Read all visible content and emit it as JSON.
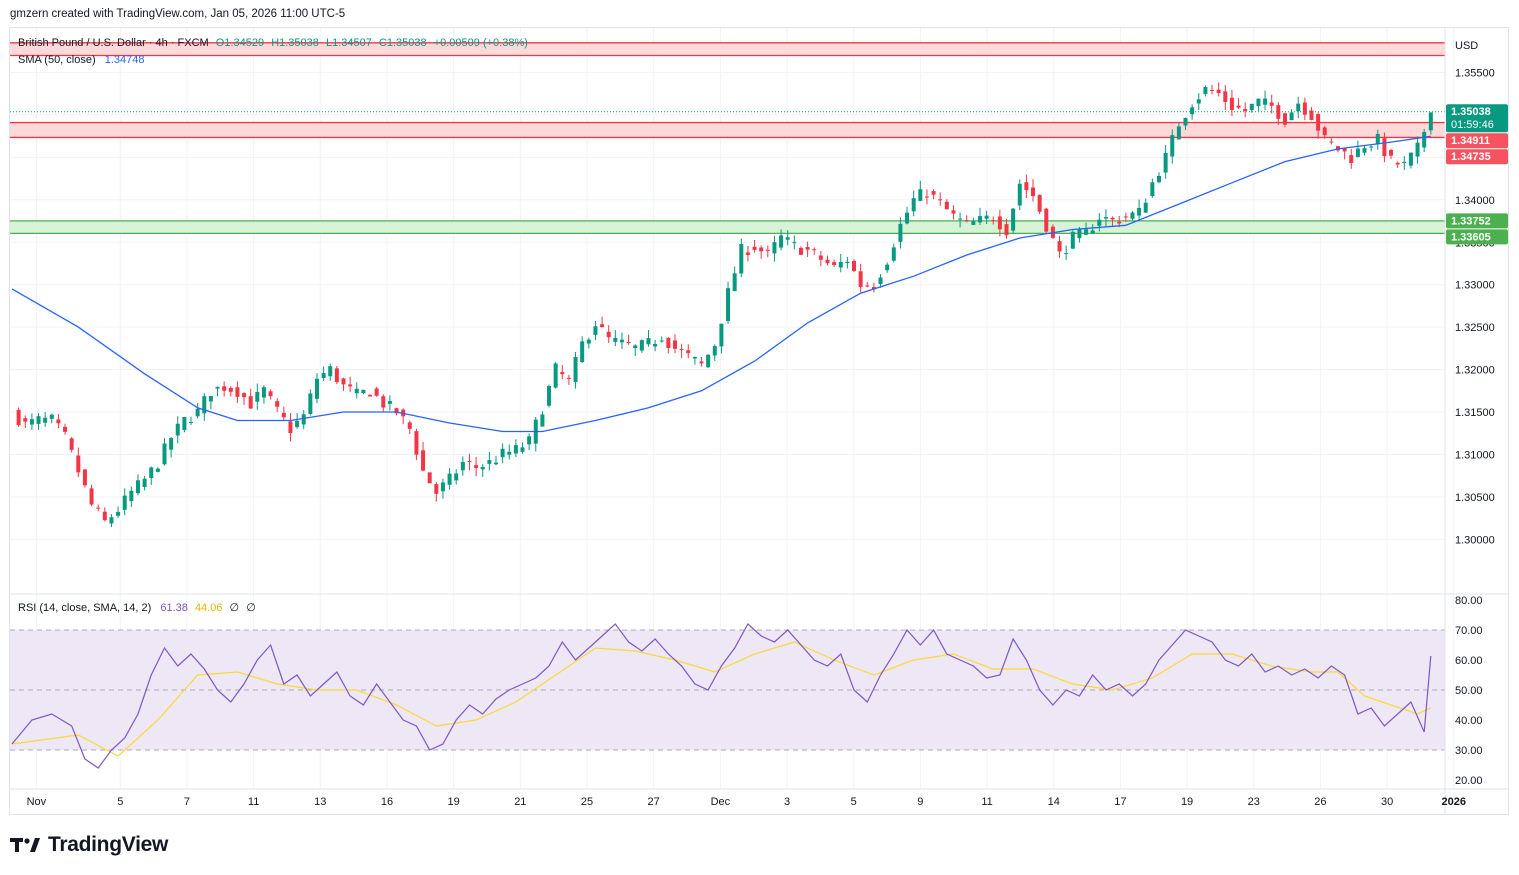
{
  "header": {
    "text": "gmzern created with TradingView.com, Jan 05, 2026 11:00 UTC-5"
  },
  "legend": {
    "symbol": "British Pound / U.S. Dollar · 4h · FXCM",
    "o": "O1.34529",
    "h": "H1.35038",
    "l": "L1.34507",
    "c": "C1.35038",
    "change": "+0.00509 (+0.38%)",
    "sma_label": "SMA (50, close)",
    "sma_value": "1.34748"
  },
  "rsi_legend": {
    "label": "RSI (14, close, SMA, 14, 2)",
    "rsi": "61.38",
    "sma": "44.06",
    "extra1": "∅",
    "extra2": "∅"
  },
  "currency": "USD",
  "price_axis": {
    "min": 1.2945,
    "max": 1.3593,
    "ticks": [
      "1.35500",
      "1.35000",
      "1.34500",
      "1.34000",
      "1.33500",
      "1.33000",
      "1.32500",
      "1.32000",
      "1.31500",
      "1.31000",
      "1.30500",
      "1.30000"
    ]
  },
  "rsi_axis": {
    "min": 17,
    "max": 82,
    "ticks": [
      "80.00",
      "70.00",
      "60.00",
      "50.00",
      "40.00",
      "30.00",
      "20.00"
    ]
  },
  "time_axis": [
    {
      "label": "Nov",
      "x": 0.6
    },
    {
      "label": "5",
      "x": 22
    },
    {
      "label": "7",
      "x": 39
    },
    {
      "label": "11",
      "x": 56
    },
    {
      "label": "13",
      "x": 73
    },
    {
      "label": "16",
      "x": 90
    },
    {
      "label": "19",
      "x": 107
    },
    {
      "label": "21",
      "x": 124
    },
    {
      "label": "25",
      "x": 141
    },
    {
      "label": "27",
      "x": 158
    },
    {
      "label": "Dec",
      "x": 175
    },
    {
      "label": "3",
      "x": 192
    },
    {
      "label": "5",
      "x": 209
    },
    {
      "label": "9",
      "x": 226
    },
    {
      "label": "11",
      "x": 243
    },
    {
      "label": "14",
      "x": 260
    },
    {
      "label": "17",
      "x": 277
    },
    {
      "label": "19",
      "x": 294
    },
    {
      "label": "23",
      "x": 311
    },
    {
      "label": "26",
      "x": 328
    },
    {
      "label": "30",
      "x": 345
    },
    {
      "label": "2026",
      "x": 362
    }
  ],
  "badges": [
    {
      "price": 1.35038,
      "text": "1.35038",
      "sub": "01:59:46",
      "color": "#089981"
    },
    {
      "price": 1.34911,
      "text": "1.34911",
      "color": "#f7525f"
    },
    {
      "price": 1.34735,
      "text": "1.34735",
      "color": "#f7525f"
    },
    {
      "price": 1.33752,
      "text": "1.33752",
      "color": "#4caf50"
    },
    {
      "price": 1.33605,
      "text": "1.33605",
      "color": "#4caf50"
    }
  ],
  "colors": {
    "up": "#089981",
    "down": "#f23645",
    "sma": "#2962ff",
    "rsi": "#7e57c2",
    "rsi_sma": "#fdd835",
    "resist_fill": "#fcdada",
    "resist_line": "#f23645",
    "support_fill": "#d7f3d7",
    "support_line": "#4caf50",
    "rsi_band": "#ede7f6"
  },
  "chart_data": {
    "type": "candlestick",
    "title": "British Pound / U.S. Dollar · 4h · FXCM",
    "x_axis_labels": [
      "Nov",
      "5",
      "7",
      "11",
      "13",
      "16",
      "19",
      "21",
      "25",
      "27",
      "Dec",
      "3",
      "5",
      "9",
      "11",
      "14",
      "17",
      "19",
      "23",
      "26",
      "30",
      "2026"
    ],
    "zones": [
      {
        "type": "resistance",
        "from": 1.3585,
        "to": 1.357
      },
      {
        "type": "resistance",
        "from": 1.3491,
        "to": 1.34735
      },
      {
        "type": "support",
        "from": 1.33752,
        "to": 1.33605
      }
    ],
    "close_path": [
      [
        0,
        1.315
      ],
      [
        2,
        1.3135
      ],
      [
        4,
        1.314
      ],
      [
        6,
        1.314
      ],
      [
        8,
        1.312
      ],
      [
        10,
        1.308
      ],
      [
        12,
        1.304
      ],
      [
        14,
        1.302
      ],
      [
        16,
        1.3035
      ],
      [
        18,
        1.3055
      ],
      [
        20,
        1.307
      ],
      [
        22,
        1.309
      ],
      [
        24,
        1.312
      ],
      [
        26,
        1.314
      ],
      [
        28,
        1.315
      ],
      [
        30,
        1.3175
      ],
      [
        32,
        1.318
      ],
      [
        34,
        1.3175
      ],
      [
        36,
        1.316
      ],
      [
        38,
        1.3175
      ],
      [
        40,
        1.315
      ],
      [
        42,
        1.313
      ],
      [
        44,
        1.3145
      ],
      [
        46,
        1.319
      ],
      [
        48,
        1.32
      ],
      [
        50,
        1.318
      ],
      [
        52,
        1.317
      ],
      [
        54,
        1.3175
      ],
      [
        56,
        1.316
      ],
      [
        58,
        1.315
      ],
      [
        60,
        1.313
      ],
      [
        62,
        1.308
      ],
      [
        64,
        1.3055
      ],
      [
        66,
        1.307
      ],
      [
        68,
        1.309
      ],
      [
        70,
        1.3085
      ],
      [
        72,
        1.309
      ],
      [
        74,
        1.31
      ],
      [
        76,
        1.3105
      ],
      [
        78,
        1.3115
      ],
      [
        80,
        1.3155
      ],
      [
        82,
        1.32
      ],
      [
        84,
        1.3185
      ],
      [
        86,
        1.323
      ],
      [
        88,
        1.3255
      ],
      [
        90,
        1.3235
      ],
      [
        92,
        1.323
      ],
      [
        94,
        1.3225
      ],
      [
        96,
        1.323
      ],
      [
        98,
        1.324
      ],
      [
        100,
        1.3225
      ],
      [
        102,
        1.3215
      ],
      [
        104,
        1.3205
      ],
      [
        106,
        1.323
      ],
      [
        108,
        1.329
      ],
      [
        110,
        1.334
      ],
      [
        112,
        1.3345
      ],
      [
        114,
        1.3335
      ],
      [
        116,
        1.3355
      ],
      [
        118,
        1.3345
      ],
      [
        120,
        1.334
      ],
      [
        122,
        1.333
      ],
      [
        124,
        1.332
      ],
      [
        126,
        1.333
      ],
      [
        128,
        1.33
      ],
      [
        130,
        1.33
      ],
      [
        132,
        1.333
      ],
      [
        134,
        1.337
      ],
      [
        136,
        1.34
      ],
      [
        138,
        1.341
      ],
      [
        140,
        1.3395
      ],
      [
        142,
        1.338
      ],
      [
        144,
        1.337
      ],
      [
        146,
        1.3375
      ],
      [
        148,
        1.338
      ],
      [
        150,
        1.3365
      ],
      [
        152,
        1.342
      ],
      [
        154,
        1.3405
      ],
      [
        156,
        1.337
      ],
      [
        158,
        1.3335
      ],
      [
        160,
        1.3355
      ],
      [
        162,
        1.336
      ],
      [
        164,
        1.338
      ],
      [
        166,
        1.3375
      ],
      [
        168,
        1.338
      ],
      [
        170,
        1.3385
      ],
      [
        172,
        1.342
      ],
      [
        174,
        1.345
      ],
      [
        176,
        1.349
      ],
      [
        178,
        1.3515
      ],
      [
        180,
        1.353
      ],
      [
        182,
        1.3525
      ],
      [
        184,
        1.351
      ],
      [
        186,
        1.3505
      ],
      [
        188,
        1.3515
      ],
      [
        190,
        1.351
      ],
      [
        192,
        1.3495
      ],
      [
        194,
        1.3515
      ],
      [
        196,
        1.35
      ],
      [
        198,
        1.347
      ],
      [
        200,
        1.346
      ],
      [
        202,
        1.345
      ],
      [
        204,
        1.3465
      ],
      [
        206,
        1.347
      ],
      [
        208,
        1.3445
      ],
      [
        210,
        1.344
      ],
      [
        212,
        1.346
      ],
      [
        214,
        1.3503
      ]
    ],
    "sma_50": [
      [
        0,
        1.3295
      ],
      [
        10,
        1.325
      ],
      [
        20,
        1.3195
      ],
      [
        28,
        1.3155
      ],
      [
        34,
        1.314
      ],
      [
        42,
        1.314
      ],
      [
        50,
        1.315
      ],
      [
        58,
        1.315
      ],
      [
        66,
        1.3137
      ],
      [
        74,
        1.3127
      ],
      [
        80,
        1.3127
      ],
      [
        88,
        1.314
      ],
      [
        96,
        1.3155
      ],
      [
        104,
        1.3175
      ],
      [
        112,
        1.321
      ],
      [
        120,
        1.3255
      ],
      [
        128,
        1.329
      ],
      [
        136,
        1.331
      ],
      [
        144,
        1.3335
      ],
      [
        152,
        1.3355
      ],
      [
        160,
        1.3365
      ],
      [
        168,
        1.337
      ],
      [
        176,
        1.3395
      ],
      [
        184,
        1.342
      ],
      [
        192,
        1.3445
      ],
      [
        200,
        1.346
      ],
      [
        208,
        1.3468
      ],
      [
        214,
        1.34748
      ]
    ],
    "rsi": [
      [
        0,
        32
      ],
      [
        3,
        40
      ],
      [
        6,
        42
      ],
      [
        9,
        38
      ],
      [
        11,
        27
      ],
      [
        13,
        24
      ],
      [
        15,
        30
      ],
      [
        17,
        34
      ],
      [
        19,
        42
      ],
      [
        21,
        55
      ],
      [
        23,
        64
      ],
      [
        25,
        58
      ],
      [
        27,
        62
      ],
      [
        29,
        57
      ],
      [
        31,
        50
      ],
      [
        33,
        46
      ],
      [
        35,
        52
      ],
      [
        37,
        60
      ],
      [
        39,
        65
      ],
      [
        41,
        52
      ],
      [
        43,
        55
      ],
      [
        45,
        48
      ],
      [
        47,
        52
      ],
      [
        49,
        56
      ],
      [
        51,
        48
      ],
      [
        53,
        45
      ],
      [
        55,
        52
      ],
      [
        57,
        46
      ],
      [
        59,
        40
      ],
      [
        61,
        38
      ],
      [
        63,
        30
      ],
      [
        65,
        32
      ],
      [
        67,
        40
      ],
      [
        69,
        45
      ],
      [
        71,
        42
      ],
      [
        73,
        47
      ],
      [
        75,
        50
      ],
      [
        77,
        52
      ],
      [
        79,
        54
      ],
      [
        81,
        58
      ],
      [
        83,
        66
      ],
      [
        85,
        60
      ],
      [
        87,
        64
      ],
      [
        89,
        68
      ],
      [
        91,
        72
      ],
      [
        93,
        66
      ],
      [
        95,
        63
      ],
      [
        97,
        67
      ],
      [
        99,
        62
      ],
      [
        101,
        58
      ],
      [
        103,
        52
      ],
      [
        105,
        50
      ],
      [
        107,
        58
      ],
      [
        109,
        64
      ],
      [
        111,
        72
      ],
      [
        113,
        68
      ],
      [
        115,
        66
      ],
      [
        117,
        70
      ],
      [
        119,
        65
      ],
      [
        121,
        60
      ],
      [
        123,
        58
      ],
      [
        125,
        62
      ],
      [
        127,
        50
      ],
      [
        129,
        46
      ],
      [
        131,
        55
      ],
      [
        133,
        62
      ],
      [
        135,
        70
      ],
      [
        137,
        65
      ],
      [
        139,
        70
      ],
      [
        141,
        62
      ],
      [
        143,
        60
      ],
      [
        145,
        58
      ],
      [
        147,
        54
      ],
      [
        149,
        55
      ],
      [
        151,
        67
      ],
      [
        153,
        60
      ],
      [
        155,
        50
      ],
      [
        157,
        45
      ],
      [
        159,
        50
      ],
      [
        161,
        48
      ],
      [
        163,
        55
      ],
      [
        165,
        50
      ],
      [
        167,
        52
      ],
      [
        169,
        48
      ],
      [
        171,
        52
      ],
      [
        173,
        60
      ],
      [
        175,
        65
      ],
      [
        177,
        70
      ],
      [
        179,
        68
      ],
      [
        181,
        66
      ],
      [
        183,
        60
      ],
      [
        185,
        58
      ],
      [
        187,
        62
      ],
      [
        189,
        56
      ],
      [
        191,
        58
      ],
      [
        193,
        55
      ],
      [
        195,
        57
      ],
      [
        197,
        54
      ],
      [
        199,
        58
      ],
      [
        201,
        55
      ],
      [
        203,
        42
      ],
      [
        205,
        44
      ],
      [
        207,
        38
      ],
      [
        209,
        42
      ],
      [
        211,
        46
      ],
      [
        213,
        36
      ],
      [
        214,
        61.38
      ]
    ],
    "rsi_sma": [
      [
        0,
        32
      ],
      [
        10,
        35
      ],
      [
        16,
        28
      ],
      [
        22,
        40
      ],
      [
        28,
        55
      ],
      [
        34,
        56
      ],
      [
        40,
        52
      ],
      [
        46,
        50
      ],
      [
        52,
        50
      ],
      [
        58,
        45
      ],
      [
        64,
        38
      ],
      [
        70,
        40
      ],
      [
        76,
        46
      ],
      [
        82,
        55
      ],
      [
        88,
        64
      ],
      [
        94,
        63
      ],
      [
        100,
        60
      ],
      [
        106,
        56
      ],
      [
        112,
        62
      ],
      [
        118,
        66
      ],
      [
        124,
        60
      ],
      [
        130,
        55
      ],
      [
        136,
        60
      ],
      [
        142,
        62
      ],
      [
        148,
        57
      ],
      [
        154,
        57
      ],
      [
        160,
        52
      ],
      [
        166,
        50
      ],
      [
        172,
        54
      ],
      [
        178,
        62
      ],
      [
        184,
        62
      ],
      [
        190,
        58
      ],
      [
        196,
        56
      ],
      [
        200,
        56
      ],
      [
        204,
        48
      ],
      [
        208,
        45
      ],
      [
        212,
        42
      ],
      [
        214,
        44.06
      ]
    ],
    "rsi_levels": [
      70,
      50,
      30
    ]
  }
}
